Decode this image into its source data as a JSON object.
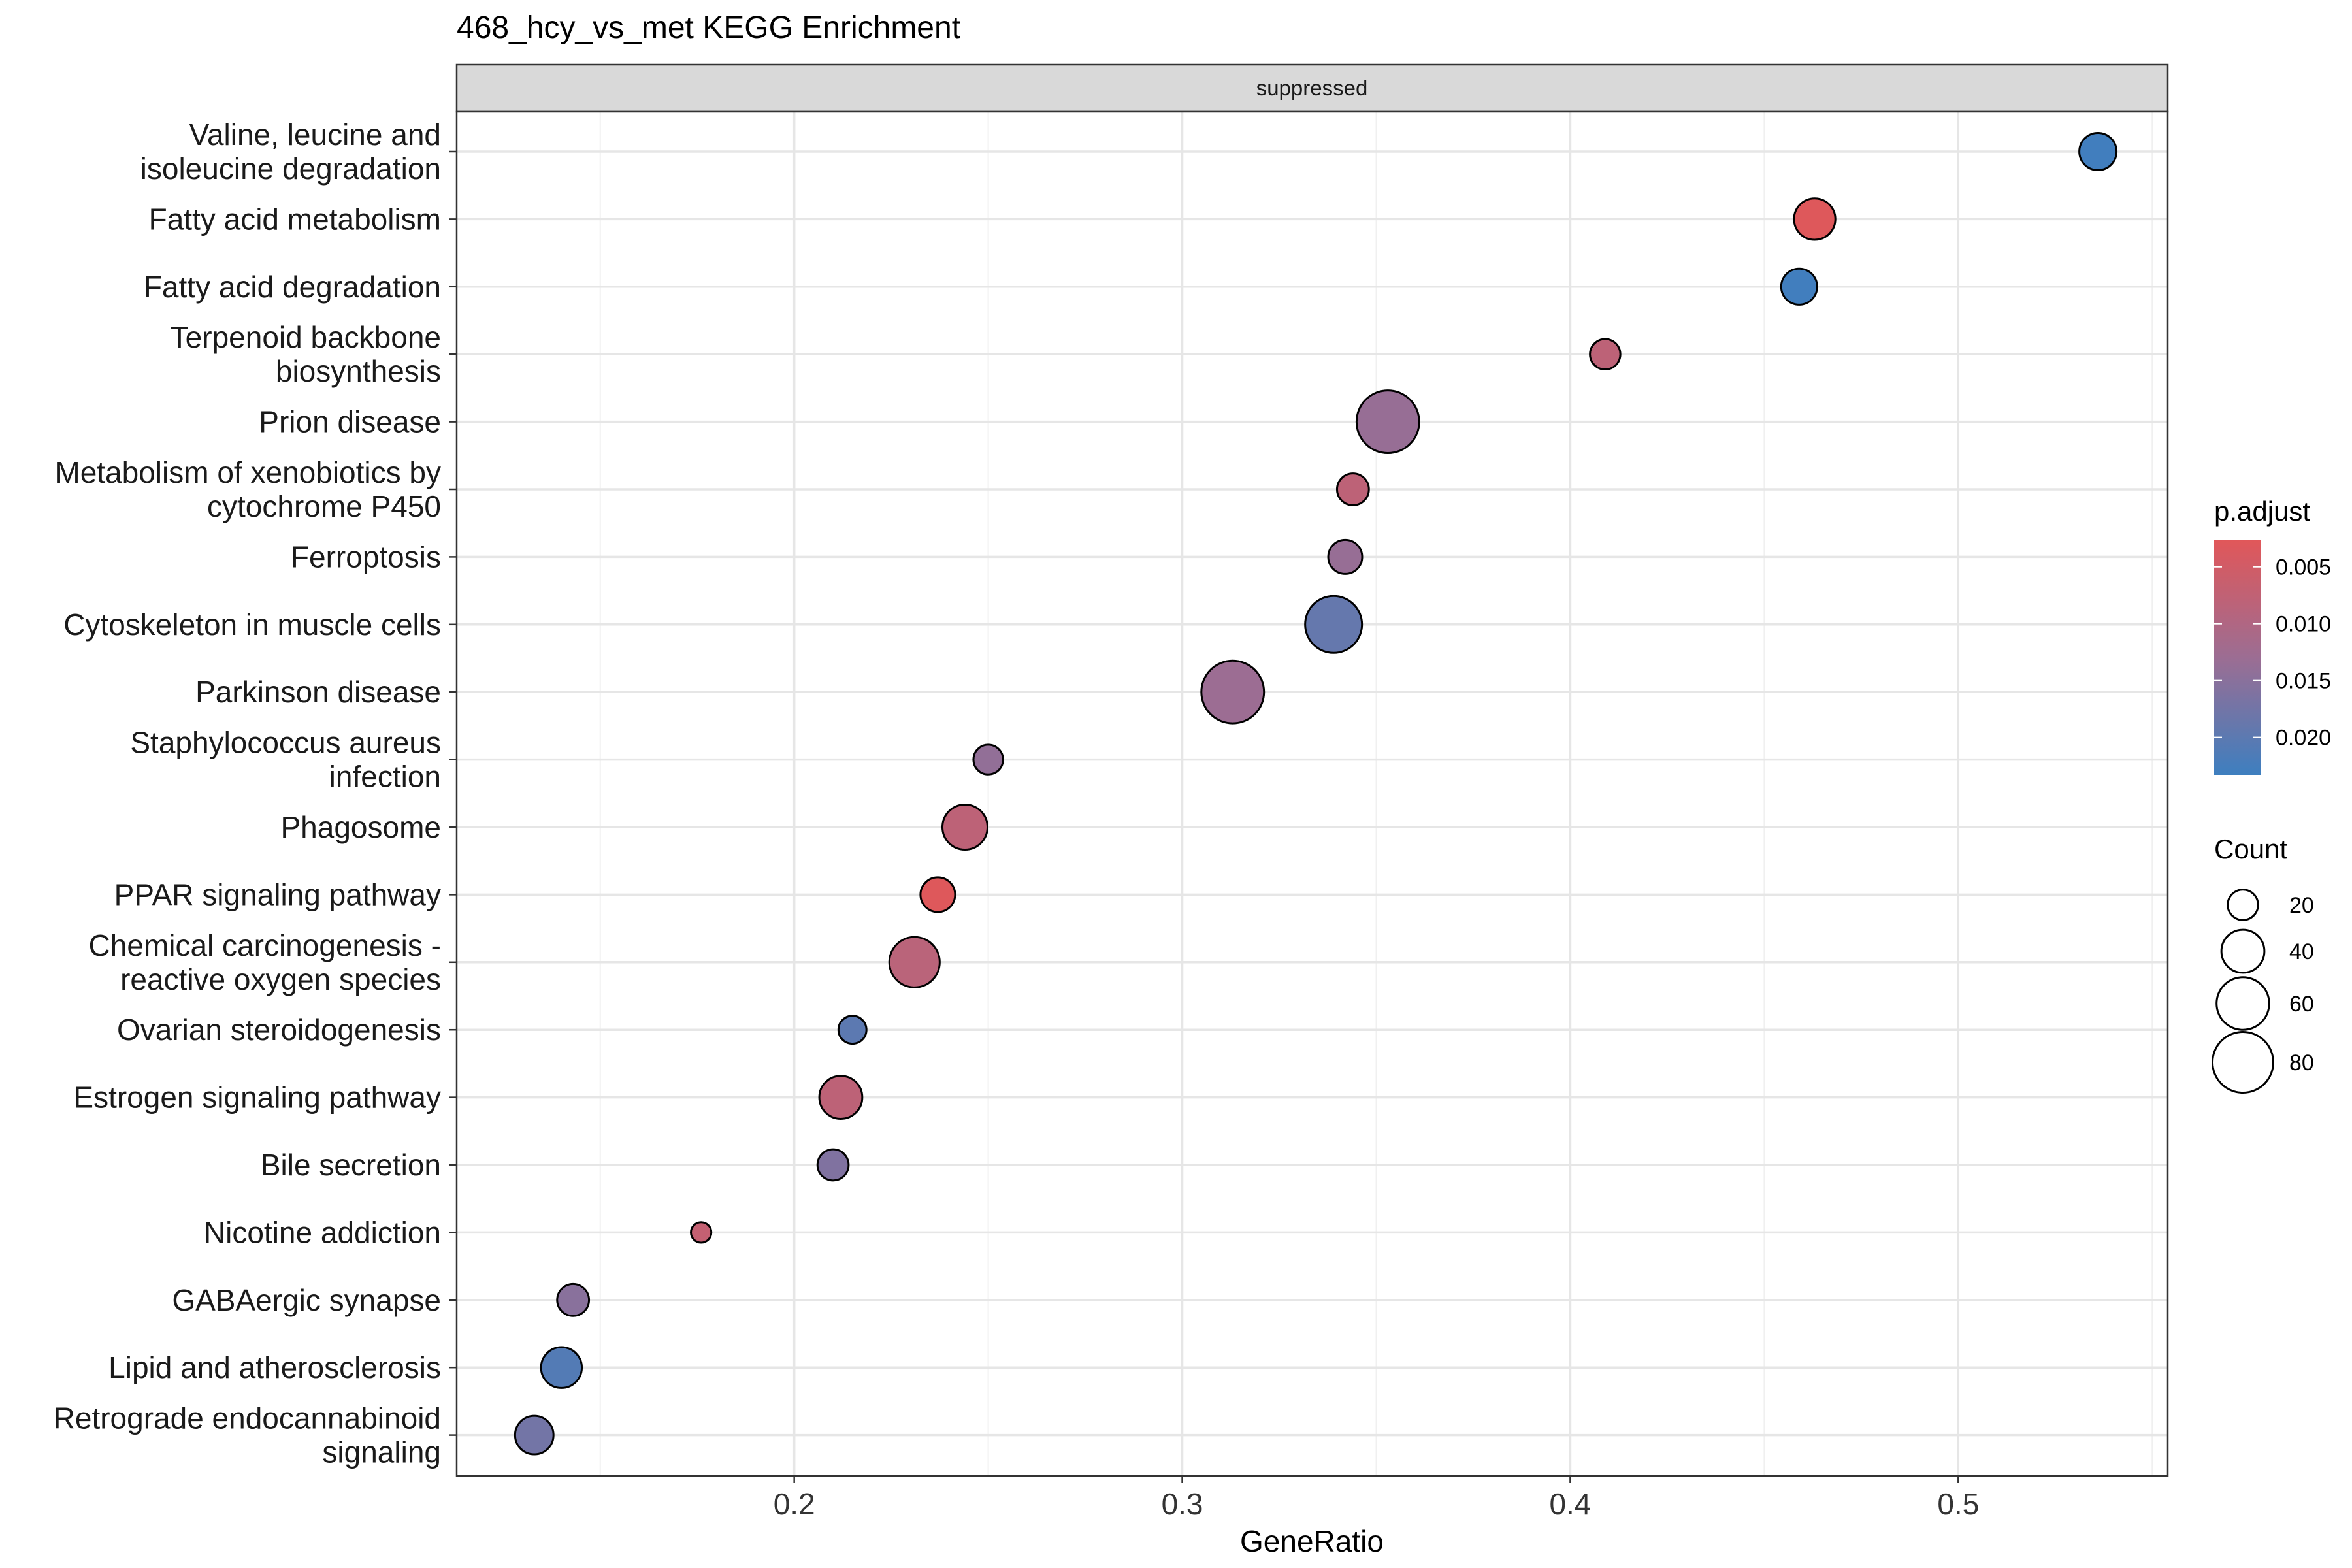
{
  "chart_data": {
    "type": "scatter",
    "title": "468_hcy_vs_met KEGG Enrichment",
    "facet_label": "suppressed",
    "xlabel": "GeneRatio",
    "ylabel": "",
    "xlim": [
      0.113,
      0.554
    ],
    "x_ticks": [
      0.2,
      0.3,
      0.4,
      0.5
    ],
    "x_tick_labels": [
      "0.2",
      "0.3",
      "0.4",
      "0.5"
    ],
    "grid": true,
    "legend_position": "right",
    "color_scale": {
      "title": "p.adjust",
      "low_color": "#E15759",
      "mid_color": "#9C6D93",
      "high_color": "#3E7FBF",
      "range": [
        0.0026,
        0.0233
      ],
      "ticks": [
        0.005,
        0.01,
        0.015,
        0.02
      ],
      "tick_labels": [
        "0.005",
        "0.010",
        "0.015",
        "0.020"
      ]
    },
    "size_scale": {
      "title": "Count",
      "values": [
        20,
        40,
        60,
        80
      ],
      "labels": [
        "20",
        "40",
        "60",
        "80"
      ]
    },
    "categories": [
      [
        "Valine, leucine and",
        "isoleucine degradation"
      ],
      [
        "Fatty acid metabolism"
      ],
      [
        "Fatty acid degradation"
      ],
      [
        "Terpenoid backbone",
        "biosynthesis"
      ],
      [
        "Prion disease"
      ],
      [
        "Metabolism of xenobiotics by",
        "cytochrome P450"
      ],
      [
        "Ferroptosis"
      ],
      [
        "Cytoskeleton in muscle cells"
      ],
      [
        "Parkinson disease"
      ],
      [
        "Staphylococcus aureus",
        "infection"
      ],
      [
        "Phagosome"
      ],
      [
        "PPAR signaling pathway"
      ],
      [
        "Chemical carcinogenesis -",
        "reactive oxygen species"
      ],
      [
        "Ovarian steroidogenesis"
      ],
      [
        "Estrogen signaling pathway"
      ],
      [
        "Bile secretion"
      ],
      [
        "Nicotine addiction"
      ],
      [
        "GABAergic synapse"
      ],
      [
        "Lipid and atherosclerosis"
      ],
      [
        "Retrograde endocannabinoid",
        "signaling"
      ]
    ],
    "points": [
      {
        "x": 0.536,
        "count": 30,
        "p_adjust": 0.023
      },
      {
        "x": 0.463,
        "count": 37,
        "p_adjust": 0.003
      },
      {
        "x": 0.459,
        "count": 28,
        "p_adjust": 0.023
      },
      {
        "x": 0.409,
        "count": 20,
        "p_adjust": 0.008
      },
      {
        "x": 0.353,
        "count": 85,
        "p_adjust": 0.0135
      },
      {
        "x": 0.344,
        "count": 22,
        "p_adjust": 0.008
      },
      {
        "x": 0.342,
        "count": 25,
        "p_adjust": 0.0135
      },
      {
        "x": 0.339,
        "count": 70,
        "p_adjust": 0.019
      },
      {
        "x": 0.313,
        "count": 85,
        "p_adjust": 0.013
      },
      {
        "x": 0.25,
        "count": 19,
        "p_adjust": 0.014
      },
      {
        "x": 0.244,
        "count": 44,
        "p_adjust": 0.008
      },
      {
        "x": 0.237,
        "count": 26,
        "p_adjust": 0.003
      },
      {
        "x": 0.231,
        "count": 55,
        "p_adjust": 0.0085
      },
      {
        "x": 0.215,
        "count": 17,
        "p_adjust": 0.02
      },
      {
        "x": 0.212,
        "count": 40,
        "p_adjust": 0.008
      },
      {
        "x": 0.21,
        "count": 21,
        "p_adjust": 0.016
      },
      {
        "x": 0.176,
        "count": 9,
        "p_adjust": 0.007
      },
      {
        "x": 0.143,
        "count": 22,
        "p_adjust": 0.015
      },
      {
        "x": 0.14,
        "count": 36,
        "p_adjust": 0.021
      },
      {
        "x": 0.133,
        "count": 32,
        "p_adjust": 0.0175
      }
    ]
  }
}
